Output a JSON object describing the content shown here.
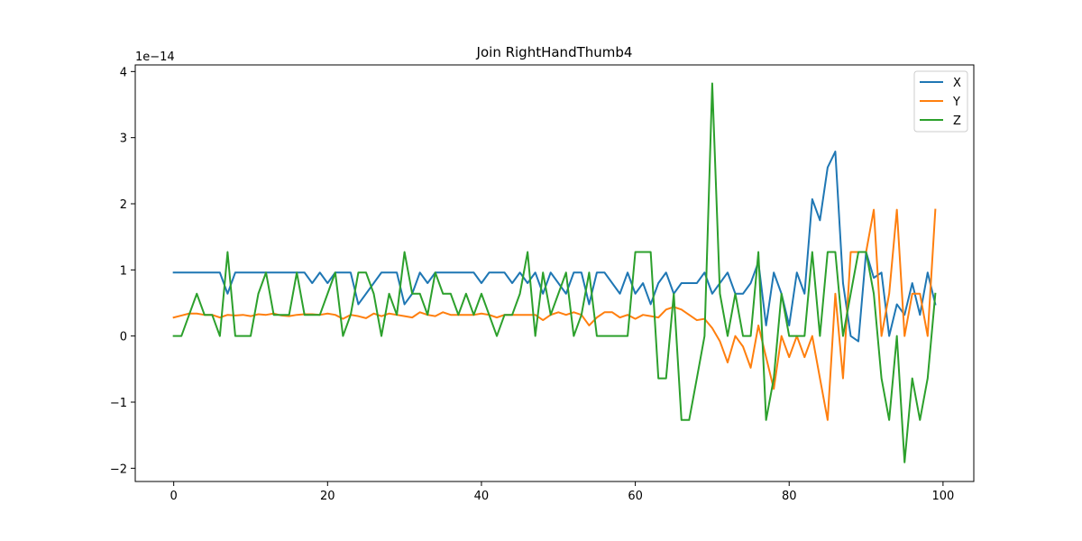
{
  "chart_data": {
    "type": "line",
    "title": "Join RightHandThumb4",
    "xlabel": "",
    "ylabel": "",
    "y_offset_label": "1e−14",
    "xlim": [
      -5,
      104
    ],
    "ylim": [
      -2.2,
      4.1
    ],
    "x_ticks": [
      0,
      20,
      40,
      60,
      80,
      100
    ],
    "y_ticks": [
      -2,
      -1,
      0,
      1,
      2,
      3,
      4
    ],
    "x_tick_labels": [
      "0",
      "20",
      "40",
      "60",
      "80",
      "100"
    ],
    "y_tick_labels": [
      "−2",
      "−1",
      "0",
      "1",
      "2",
      "3",
      "4"
    ],
    "grid": false,
    "legend_position": "top-right",
    "x": [
      0,
      1,
      2,
      3,
      4,
      5,
      6,
      7,
      8,
      9,
      10,
      11,
      12,
      13,
      14,
      15,
      16,
      17,
      18,
      19,
      20,
      21,
      22,
      23,
      24,
      25,
      26,
      27,
      28,
      29,
      30,
      31,
      32,
      33,
      34,
      35,
      36,
      37,
      38,
      39,
      40,
      41,
      42,
      43,
      44,
      45,
      46,
      47,
      48,
      49,
      50,
      51,
      52,
      53,
      54,
      55,
      56,
      57,
      58,
      59,
      60,
      61,
      62,
      63,
      64,
      65,
      66,
      67,
      68,
      69,
      70,
      71,
      72,
      73,
      74,
      75,
      76,
      77,
      78,
      79,
      80,
      81,
      82,
      83,
      84,
      85,
      86,
      87,
      88,
      89,
      90,
      91,
      92,
      93,
      94,
      95,
      96,
      97,
      98,
      99
    ],
    "series": [
      {
        "name": "X",
        "color": "#1f77b4",
        "values": [
          0.96,
          0.96,
          0.96,
          0.96,
          0.96,
          0.96,
          0.96,
          0.64,
          0.96,
          0.96,
          0.96,
          0.96,
          0.96,
          0.96,
          0.96,
          0.96,
          0.96,
          0.96,
          0.8,
          0.96,
          0.8,
          0.96,
          0.96,
          0.96,
          0.48,
          0.64,
          0.8,
          0.96,
          0.96,
          0.96,
          0.48,
          0.64,
          0.96,
          0.8,
          0.96,
          0.96,
          0.96,
          0.96,
          0.96,
          0.96,
          0.8,
          0.96,
          0.96,
          0.96,
          0.8,
          0.96,
          0.8,
          0.96,
          0.64,
          0.96,
          0.8,
          0.64,
          0.96,
          0.96,
          0.48,
          0.96,
          0.96,
          0.8,
          0.64,
          0.96,
          0.64,
          0.8,
          0.48,
          0.8,
          0.96,
          0.64,
          0.8,
          0.8,
          0.8,
          0.96,
          0.64,
          0.8,
          0.96,
          0.64,
          0.64,
          0.8,
          1.12,
          0.16,
          0.96,
          0.64,
          0.16,
          0.96,
          0.64,
          2.07,
          1.75,
          2.55,
          2.79,
          0.8,
          0.0,
          -0.08,
          1.27,
          0.88,
          0.96,
          0.0,
          0.48,
          0.32,
          0.8,
          0.32,
          0.96,
          0.48
        ]
      },
      {
        "name": "Y",
        "color": "#ff7f0e",
        "values": [
          0.28,
          0.31,
          0.34,
          0.34,
          0.32,
          0.32,
          0.28,
          0.32,
          0.31,
          0.32,
          0.3,
          0.33,
          0.32,
          0.34,
          0.31,
          0.3,
          0.32,
          0.33,
          0.33,
          0.32,
          0.34,
          0.32,
          0.26,
          0.32,
          0.3,
          0.27,
          0.34,
          0.3,
          0.34,
          0.32,
          0.3,
          0.28,
          0.36,
          0.32,
          0.3,
          0.36,
          0.32,
          0.32,
          0.32,
          0.32,
          0.34,
          0.32,
          0.28,
          0.32,
          0.32,
          0.32,
          0.32,
          0.32,
          0.24,
          0.32,
          0.36,
          0.32,
          0.36,
          0.32,
          0.16,
          0.28,
          0.36,
          0.36,
          0.28,
          0.32,
          0.26,
          0.32,
          0.3,
          0.28,
          0.4,
          0.44,
          0.4,
          0.32,
          0.24,
          0.26,
          0.12,
          -0.08,
          -0.4,
          0.0,
          -0.16,
          -0.48,
          0.16,
          -0.32,
          -0.8,
          0.0,
          -0.32,
          0.0,
          -0.32,
          0.0,
          -0.64,
          -1.27,
          0.64,
          -0.64,
          1.27,
          1.27,
          1.27,
          1.91,
          0.0,
          0.64,
          1.91,
          0.0,
          0.64,
          0.64,
          0.0,
          1.91
        ]
      },
      {
        "name": "Z",
        "color": "#2ca02c",
        "values": [
          0.0,
          0.0,
          0.32,
          0.64,
          0.32,
          0.32,
          0.0,
          1.27,
          0.0,
          0.0,
          0.0,
          0.64,
          0.96,
          0.32,
          0.32,
          0.32,
          0.96,
          0.32,
          0.32,
          0.32,
          0.64,
          0.96,
          0.0,
          0.32,
          0.96,
          0.96,
          0.64,
          0.0,
          0.64,
          0.32,
          1.27,
          0.64,
          0.64,
          0.32,
          0.96,
          0.64,
          0.64,
          0.32,
          0.64,
          0.32,
          0.64,
          0.32,
          0.0,
          0.32,
          0.32,
          0.64,
          1.27,
          0.0,
          0.96,
          0.32,
          0.64,
          0.96,
          0.0,
          0.32,
          0.96,
          0.0,
          0.0,
          0.0,
          0.0,
          0.0,
          1.27,
          1.27,
          1.27,
          -0.64,
          -0.64,
          0.64,
          -1.27,
          -1.27,
          -0.64,
          0.0,
          3.82,
          0.64,
          0.0,
          0.64,
          0.0,
          0.0,
          1.27,
          -1.27,
          -0.64,
          0.64,
          0.0,
          0.0,
          0.0,
          1.27,
          0.0,
          1.27,
          1.27,
          0.0,
          0.64,
          1.27,
          1.27,
          0.64,
          -0.64,
          -1.27,
          0.0,
          -1.91,
          -0.64,
          -1.27,
          -0.64,
          0.64
        ]
      }
    ]
  }
}
